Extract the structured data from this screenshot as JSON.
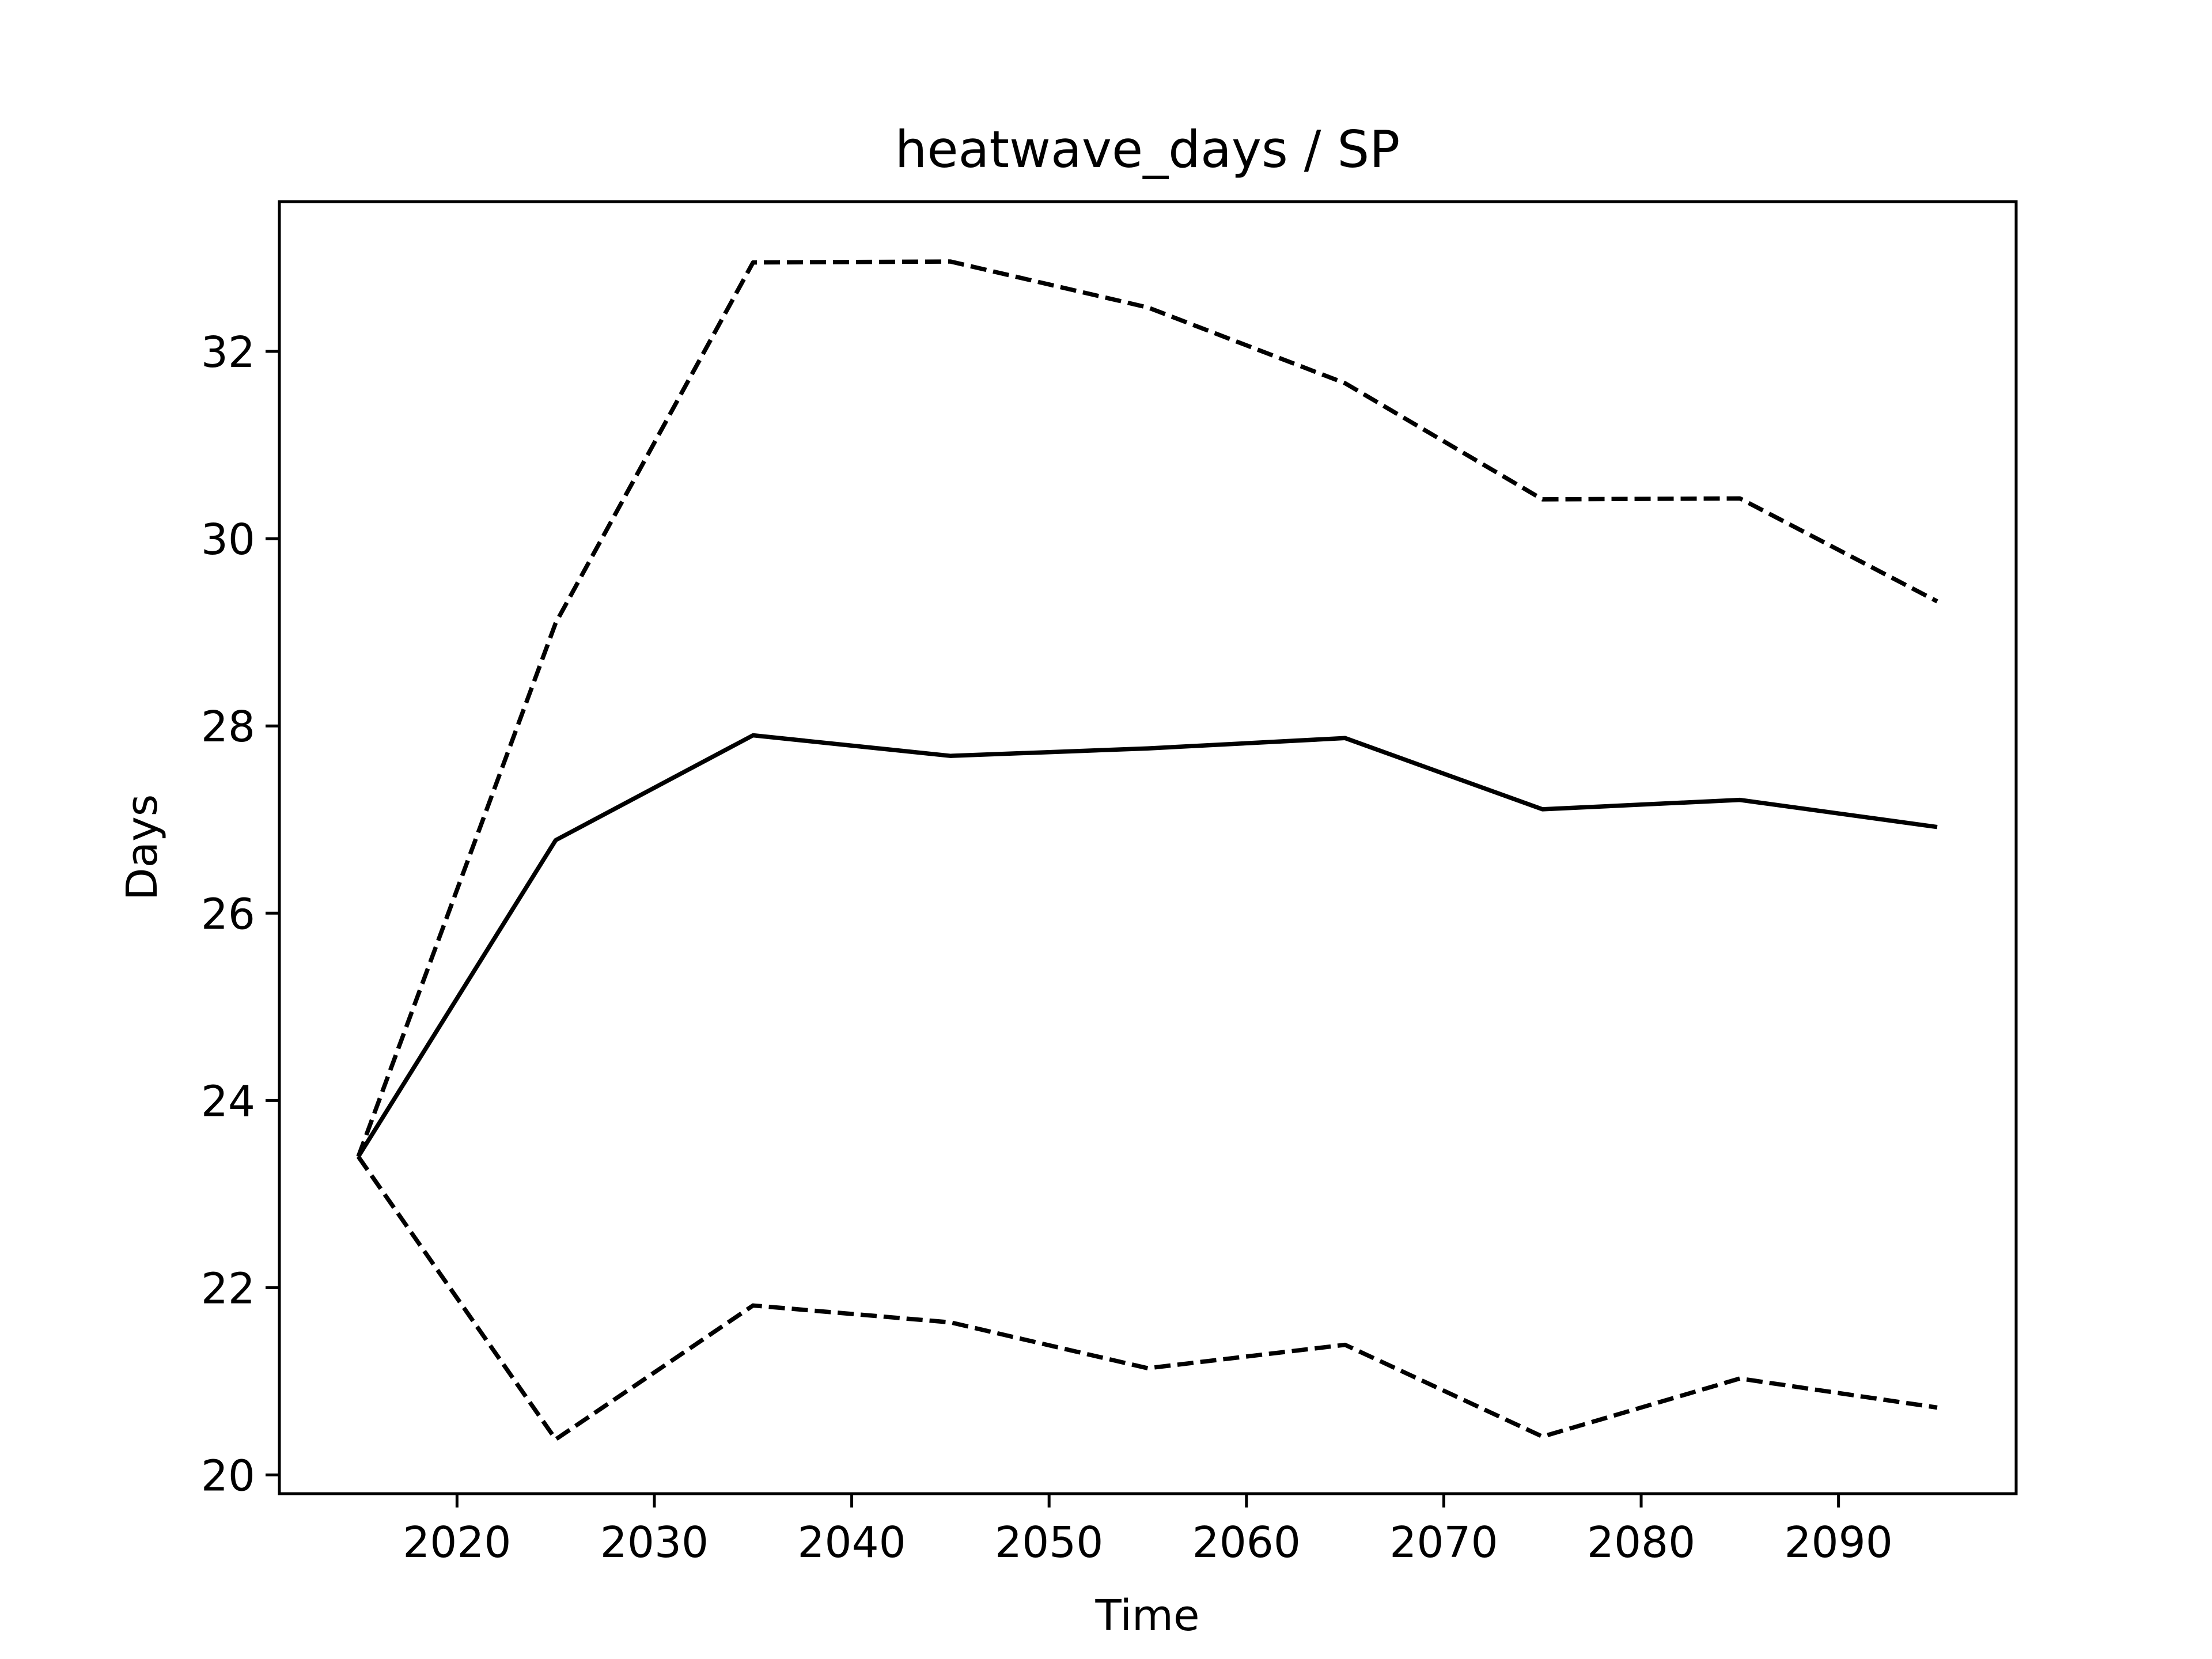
{
  "chart_data": {
    "type": "line",
    "title": "heatwave_days / SP",
    "xlabel": "Time",
    "ylabel": "Days",
    "x": [
      2015,
      2025,
      2035,
      2045,
      2055,
      2065,
      2075,
      2085,
      2095
    ],
    "xlim": [
      2011,
      2099
    ],
    "ylim": [
      19.8,
      33.6
    ],
    "xticks": [
      2020,
      2030,
      2040,
      2050,
      2060,
      2070,
      2080,
      2090
    ],
    "yticks": [
      20,
      22,
      24,
      26,
      28,
      30,
      32
    ],
    "grid": false,
    "series": [
      {
        "style": "solid",
        "color": "#000000",
        "values": [
          23.4,
          26.78,
          27.9,
          27.68,
          27.76,
          27.87,
          27.11,
          27.21,
          26.92
        ]
      },
      {
        "style": "dashed",
        "color": "#000000",
        "values": [
          23.4,
          29.1,
          32.95,
          32.96,
          32.47,
          31.66,
          30.42,
          30.43,
          29.33
        ]
      },
      {
        "style": "dashed",
        "color": "#000000",
        "values": [
          23.4,
          20.38,
          21.81,
          21.63,
          21.14,
          21.39,
          20.41,
          21.03,
          20.72
        ]
      }
    ]
  }
}
